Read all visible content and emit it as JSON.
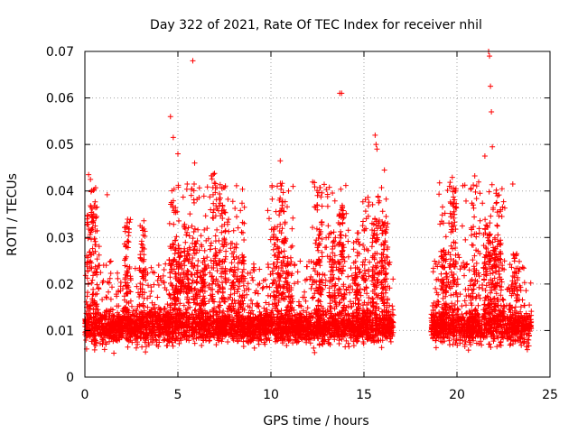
{
  "chart_data": {
    "type": "scatter",
    "title": "Day 322 of 2021, Rate Of TEC Index for receiver nhil",
    "xlabel": "GPS time / hours",
    "ylabel": "ROTI / TECUs",
    "xlim": [
      0,
      25
    ],
    "ylim": [
      0,
      0.07
    ],
    "x_ticks": [
      "0",
      "5",
      "10",
      "15",
      "20",
      "25"
    ],
    "y_ticks": [
      "0",
      "0.01",
      "0.02",
      "0.03",
      "0.04",
      "0.05",
      "0.06",
      "0.07"
    ],
    "grid": true,
    "marker": "+",
    "series": [
      {
        "name": "ROTI",
        "color": "#ff0000",
        "notable_points": [
          {
            "x": 5.8,
            "y": 0.068
          },
          {
            "x": 13.7,
            "y": 0.061
          },
          {
            "x": 13.8,
            "y": 0.061
          },
          {
            "x": 21.7,
            "y": 0.07
          },
          {
            "x": 21.75,
            "y": 0.069
          },
          {
            "x": 21.8,
            "y": 0.0625
          },
          {
            "x": 21.85,
            "y": 0.057
          },
          {
            "x": 4.6,
            "y": 0.056
          },
          {
            "x": 4.75,
            "y": 0.0515
          },
          {
            "x": 15.6,
            "y": 0.052
          },
          {
            "x": 15.65,
            "y": 0.05
          },
          {
            "x": 15.7,
            "y": 0.049
          },
          {
            "x": 21.5,
            "y": 0.0475
          },
          {
            "x": 21.9,
            "y": 0.0495
          },
          {
            "x": 10.5,
            "y": 0.0465
          },
          {
            "x": 5.0,
            "y": 0.048
          },
          {
            "x": 5.9,
            "y": 0.046
          },
          {
            "x": 0.2,
            "y": 0.0435
          },
          {
            "x": 0.3,
            "y": 0.0425
          },
          {
            "x": 1.2,
            "y": 0.0392
          },
          {
            "x": 19.6,
            "y": 0.041
          },
          {
            "x": 16.1,
            "y": 0.0445
          },
          {
            "x": 23.0,
            "y": 0.0415
          },
          {
            "x": 22.1,
            "y": 0.0395
          }
        ]
      }
    ]
  }
}
